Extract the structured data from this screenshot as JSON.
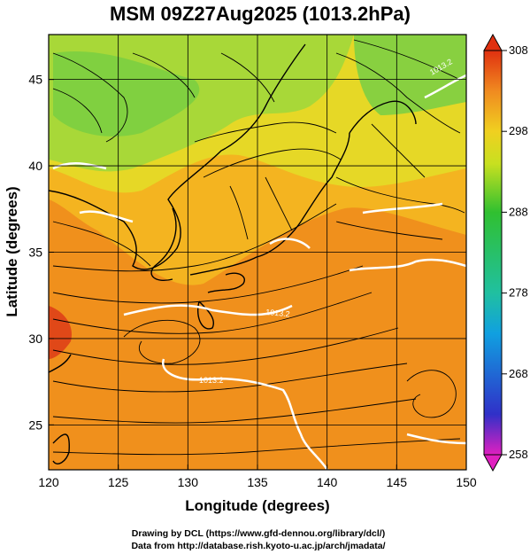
{
  "title": "MSM 09Z27Aug2025 (1013.2hPa)",
  "xlabel": "Longitude (degrees)",
  "ylabel": "Latitude  (degrees)",
  "credits": [
    "Drawing by DCL (https://www.gfd-dennou.org/library/dcl/)",
    "Data from http://database.rish.kyoto-u.ac.jp/arch/jmadata/"
  ],
  "contour_labels": [
    "1013.2",
    "1013.2",
    "1013.2"
  ],
  "colors": {
    "land_outline": "#000000",
    "contour": "#ffffff",
    "streamline": "#000000"
  },
  "chart_data": {
    "type": "heatmap",
    "variable": "temperature",
    "x_range": [
      120,
      150
    ],
    "y_range": [
      22.4,
      47.6
    ],
    "x_ticks": [
      120,
      125,
      130,
      135,
      140,
      145,
      150
    ],
    "y_ticks": [
      25,
      30,
      35,
      40,
      45
    ],
    "colorbar": {
      "min": 258,
      "max": 308,
      "tick_values": [
        308,
        298,
        288,
        278,
        268,
        258
      ],
      "tick_labels": [
        "308",
        "298",
        "288",
        "278",
        "268",
        "258"
      ]
    },
    "grid": true
  }
}
